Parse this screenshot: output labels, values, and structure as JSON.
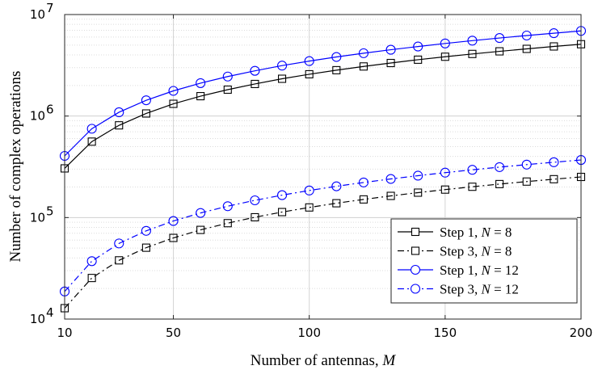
{
  "chart_data": {
    "type": "line",
    "title": "",
    "xlabel": "Number of antennas, M",
    "ylabel": "Number of complex operations",
    "xlim": [
      10,
      200
    ],
    "ylim": [
      10000,
      10000000
    ],
    "yscale": "log",
    "grid": true,
    "legend_position": "bottom-right",
    "x_ticks": [
      "10",
      "50",
      "100",
      "150",
      "200"
    ],
    "y_ticks": [
      {
        "base": "10",
        "exp": "4"
      },
      {
        "base": "10",
        "exp": "5"
      },
      {
        "base": "10",
        "exp": "6"
      },
      {
        "base": "10",
        "exp": "7"
      }
    ],
    "x": [
      10,
      20,
      30,
      40,
      50,
      60,
      70,
      80,
      90,
      100,
      110,
      120,
      130,
      140,
      150,
      160,
      170,
      180,
      190,
      200
    ],
    "series": [
      {
        "name": "Step 1, N = 8",
        "color": "#000000",
        "marker": "square",
        "linestyle": "solid",
        "values": [
          305000,
          560000,
          810000,
          1060000,
          1320000,
          1570000,
          1820000,
          2070000,
          2330000,
          2580000,
          2830000,
          3080000,
          3330000,
          3590000,
          3840000,
          4090000,
          4340000,
          4590000,
          4850000,
          5100000
        ]
      },
      {
        "name": "Step 3, N = 8",
        "color": "#000000",
        "marker": "square",
        "linestyle": "dashdot",
        "values": [
          12800,
          25400,
          37900,
          50500,
          63000,
          75600,
          88100,
          100700,
          113300,
          125800,
          138400,
          150900,
          163500,
          176000,
          188600,
          201100,
          213700,
          226200,
          238800,
          251400
        ]
      },
      {
        "name": "Step 1, N = 12",
        "color": "#0000ff",
        "marker": "circle",
        "linestyle": "solid",
        "values": [
          405000,
          750000,
          1090000,
          1430000,
          1770000,
          2110000,
          2450000,
          2790000,
          3140000,
          3480000,
          3820000,
          4160000,
          4500000,
          4840000,
          5190000,
          5530000,
          5870000,
          6210000,
          6550000,
          6900000
        ]
      },
      {
        "name": "Step 3, N = 12",
        "color": "#0000ff",
        "marker": "circle",
        "linestyle": "dashdot",
        "values": [
          18700,
          37200,
          55600,
          74000,
          92500,
          111000,
          129400,
          147800,
          166300,
          184800,
          203200,
          221600,
          240100,
          258600,
          277000,
          295400,
          313900,
          332400,
          350800,
          369200
        ]
      }
    ]
  }
}
